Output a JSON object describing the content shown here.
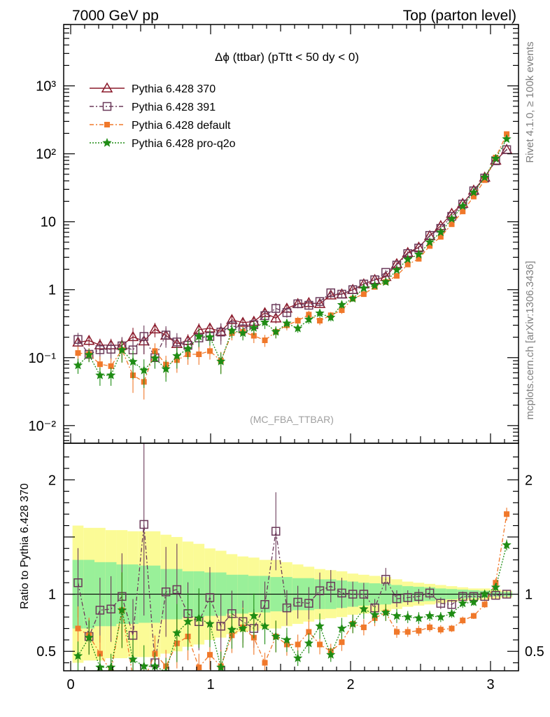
{
  "header": {
    "left": "7000 GeV pp",
    "right": "Top (parton level)"
  },
  "side_text": {
    "rivet": "Rivet 4.1.0, ≥ 100k events",
    "mcplots": "mcplots.cern.ch [arXiv:1306.3436]"
  },
  "chart_data": {
    "type": "line",
    "title": "Δϕ (ttbar) (pTtt < 50 dy < 0)",
    "watermark": "(MC_FBA_TTBAR)",
    "xlabel": "",
    "ylabel": "",
    "ratio_ylabel": "Ratio to Pythia 6.428 370",
    "xlim": [
      -0.05,
      3.2
    ],
    "ylim": [
      0.0055,
      8000
    ],
    "yscale": "log",
    "ratio_ylim": [
      0.33,
      2.32
    ],
    "x_ticks": [
      "0",
      "1",
      "2",
      "3"
    ],
    "y_ticks": [
      "10⁻²",
      "10⁻¹",
      "1",
      "10",
      "10²",
      "10³"
    ],
    "ratio_ticks": [
      "0.5",
      "1",
      "2"
    ],
    "legend": [
      "Pythia 6.428 370",
      "Pythia 6.428 391",
      "Pythia 6.428 default",
      "Pythia 6.428 pro-q2o"
    ],
    "legend_position": "top-left",
    "colors": {
      "p370": "#8b1a2b",
      "p391": "#6b3a5a",
      "default": "#f0782a",
      "proq2o": "#1e8c14",
      "band_inner": "#99f099",
      "band_outer": "#fbfb96"
    },
    "x": [
      0.0524,
      0.1309,
      0.2094,
      0.288,
      0.3665,
      0.4451,
      0.5236,
      0.6021,
      0.6807,
      0.7592,
      0.8378,
      0.9163,
      0.9948,
      1.0734,
      1.1519,
      1.2305,
      1.309,
      1.3875,
      1.4661,
      1.5446,
      1.6232,
      1.7017,
      1.7802,
      1.8588,
      1.9373,
      2.0159,
      2.0944,
      2.1729,
      2.2515,
      2.33,
      2.4086,
      2.4871,
      2.5656,
      2.6442,
      2.7227,
      2.8013,
      2.8798,
      2.9583,
      3.0369,
      3.1154
    ],
    "series": [
      {
        "name": "Pythia 6.428 370",
        "key": "p370",
        "marker": "triangle",
        "dash": "",
        "values": [
          0.168,
          0.178,
          0.153,
          0.153,
          0.152,
          0.202,
          0.175,
          0.262,
          0.212,
          0.16,
          0.178,
          0.258,
          0.271,
          0.243,
          0.36,
          0.328,
          0.34,
          0.455,
          0.38,
          0.53,
          0.62,
          0.64,
          0.62,
          0.83,
          0.86,
          1.0,
          1.21,
          1.4,
          1.55,
          2.4,
          3.5,
          4.2,
          6.2,
          8.7,
          13.2,
          18.5,
          29.0,
          45.0,
          80.0,
          115.0
        ]
      },
      {
        "name": "Pythia 6.428 391",
        "key": "p391",
        "marker": "square",
        "dash": "6,3,2,3",
        "values": [
          0.185,
          0.112,
          0.131,
          0.133,
          0.149,
          0.13,
          0.205,
          0.1,
          0.215,
          0.17,
          0.152,
          0.195,
          0.205,
          0.238,
          0.295,
          0.265,
          0.305,
          0.415,
          0.53,
          0.46,
          0.62,
          0.59,
          0.67,
          0.9,
          0.86,
          1.0,
          1.21,
          1.4,
          1.8,
          2.3,
          3.4,
          4.1,
          6.3,
          8.0,
          12.0,
          18.2,
          28.5,
          44.0,
          79.0,
          115.0
        ]
      },
      {
        "name": "Pythia 6.428 default",
        "key": "default",
        "marker": "filled-square",
        "dash": "6,3,2,3",
        "values": [
          0.117,
          0.113,
          0.08,
          0.075,
          0.13,
          0.055,
          0.044,
          0.125,
          0.079,
          0.092,
          0.112,
          0.112,
          0.125,
          0.09,
          0.23,
          0.24,
          0.21,
          0.18,
          0.24,
          0.3,
          0.35,
          0.43,
          0.35,
          0.42,
          0.5,
          0.74,
          0.86,
          1.1,
          1.3,
          1.6,
          2.35,
          2.85,
          4.4,
          6.0,
          9.2,
          14.2,
          23.5,
          41.0,
          88.0,
          195.0
        ]
      },
      {
        "name": "Pythia 6.428 pro-q2o",
        "key": "proq2o",
        "marker": "star",
        "dash": "2,2",
        "values": [
          0.077,
          0.11,
          0.055,
          0.055,
          0.13,
          0.087,
          0.065,
          0.098,
          0.068,
          0.106,
          0.135,
          0.205,
          0.2,
          0.088,
          0.25,
          0.23,
          0.275,
          0.33,
          0.24,
          0.32,
          0.27,
          0.365,
          0.45,
          0.39,
          0.6,
          0.74,
          1.05,
          1.15,
          1.3,
          1.95,
          2.8,
          3.3,
          5.0,
          7.0,
          11.0,
          17.0,
          27.0,
          45.0,
          85.0,
          165.0
        ]
      }
    ],
    "ratio_series": [
      {
        "key": "p370",
        "values": [
          1,
          1,
          1,
          1,
          1,
          1,
          1,
          1,
          1,
          1,
          1,
          1,
          1,
          1,
          1,
          1,
          1,
          1,
          1,
          1,
          1,
          1,
          1,
          1,
          1,
          1,
          1,
          1,
          1,
          1,
          1,
          1,
          1,
          1,
          1,
          1,
          1,
          1,
          1,
          1
        ]
      },
      {
        "key": "p391",
        "values": [
          1.1,
          0.63,
          0.86,
          0.87,
          0.98,
          0.64,
          1.61,
          0.4,
          1.02,
          1.04,
          0.83,
          0.76,
          0.97,
          0.72,
          0.83,
          0.76,
          0.7,
          0.91,
          1.55,
          0.88,
          0.93,
          0.92,
          1.03,
          1.07,
          1.01,
          1.0,
          1.0,
          0.88,
          1.13,
          0.96,
          0.97,
          0.98,
          1.01,
          0.92,
          0.91,
          0.98,
          0.98,
          0.98,
          0.99,
          1.0
        ]
      },
      {
        "key": "default",
        "values": [
          0.7,
          0.64,
          0.48,
          0.32,
          0.86,
          0.27,
          0.25,
          0.48,
          0.37,
          0.57,
          0.63,
          0.36,
          0.47,
          0.37,
          0.64,
          0.71,
          0.62,
          0.4,
          0.63,
          0.56,
          0.56,
          0.67,
          0.56,
          0.5,
          0.58,
          0.74,
          0.71,
          0.79,
          0.84,
          0.67,
          0.67,
          0.68,
          0.71,
          0.69,
          0.7,
          0.77,
          0.81,
          0.91,
          1.1,
          1.7
        ]
      },
      {
        "key": "proq2o",
        "values": [
          0.46,
          0.62,
          0.36,
          0.36,
          0.86,
          0.43,
          0.37,
          0.37,
          0.32,
          0.66,
          0.76,
          0.79,
          0.74,
          0.36,
          0.69,
          0.7,
          0.81,
          0.72,
          0.63,
          0.6,
          0.44,
          0.57,
          0.72,
          0.47,
          0.7,
          0.74,
          0.87,
          0.82,
          0.84,
          0.81,
          0.8,
          0.79,
          0.81,
          0.8,
          0.83,
          0.92,
          0.93,
          1.0,
          1.06,
          1.43
        ]
      }
    ],
    "band_inner": [
      0.3,
      0.3,
      0.28,
      0.28,
      0.26,
      0.26,
      0.25,
      0.25,
      0.22,
      0.22,
      0.2,
      0.2,
      0.19,
      0.19,
      0.17,
      0.17,
      0.16,
      0.16,
      0.15,
      0.15,
      0.14,
      0.14,
      0.13,
      0.13,
      0.12,
      0.11,
      0.1,
      0.095,
      0.09,
      0.08,
      0.07,
      0.065,
      0.06,
      0.05,
      0.045,
      0.04,
      0.035,
      0.03,
      0.02,
      0.02
    ],
    "band_outer": [
      0.6,
      0.58,
      0.58,
      0.56,
      0.56,
      0.55,
      0.55,
      0.55,
      0.52,
      0.5,
      0.46,
      0.44,
      0.4,
      0.38,
      0.35,
      0.33,
      0.32,
      0.3,
      0.3,
      0.28,
      0.26,
      0.24,
      0.22,
      0.21,
      0.2,
      0.18,
      0.17,
      0.16,
      0.15,
      0.13,
      0.11,
      0.1,
      0.09,
      0.08,
      0.07,
      0.06,
      0.05,
      0.05,
      0.04,
      0.03
    ]
  }
}
